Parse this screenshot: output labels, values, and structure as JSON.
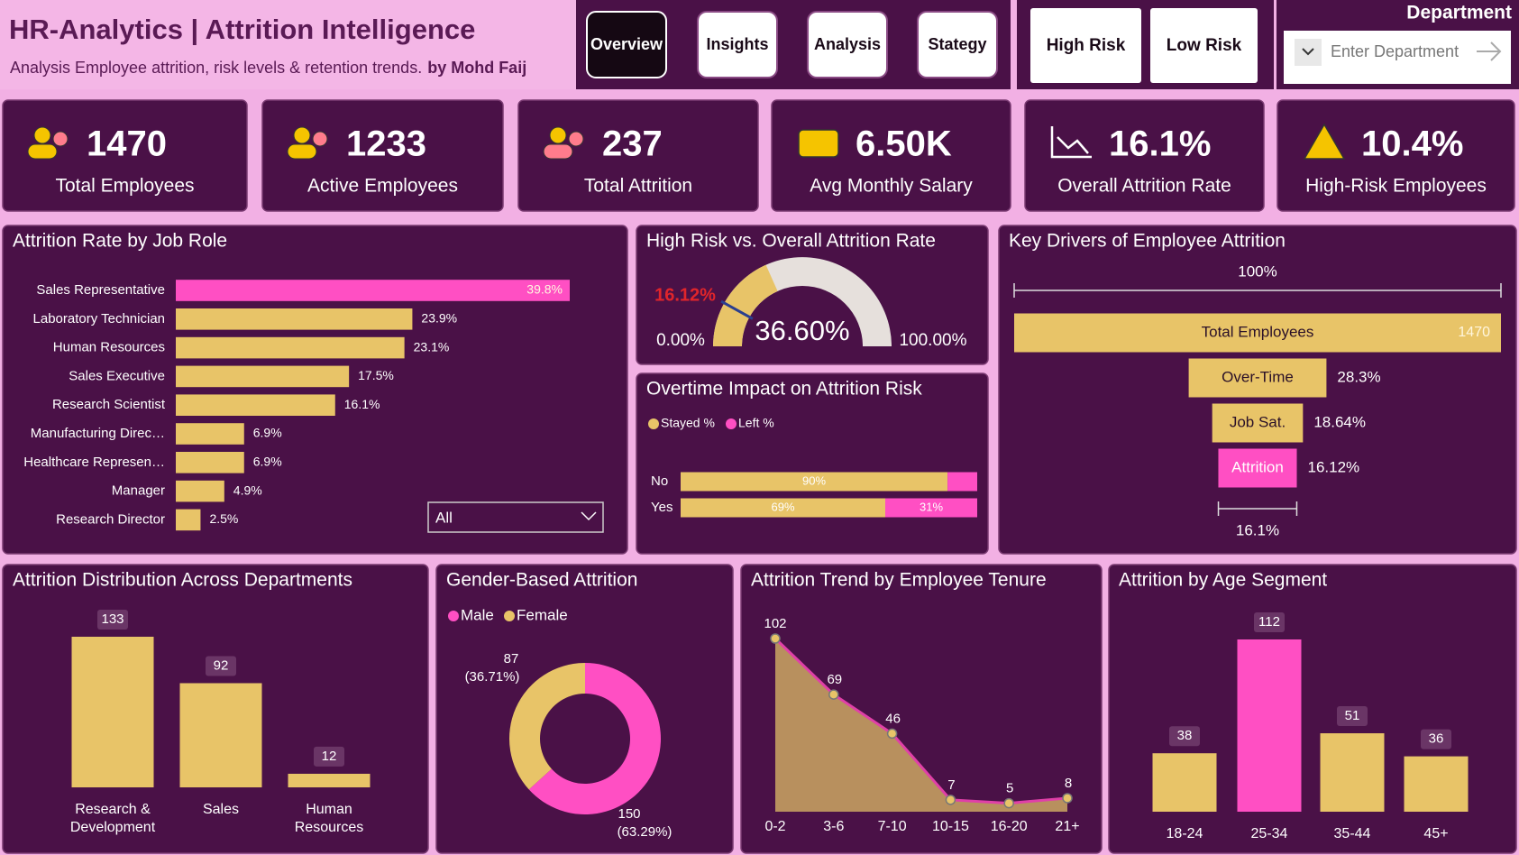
{
  "header": {
    "title": "HR-Analytics | Attrition Intelligence",
    "subtitle": "Analysis Employee attrition, risk levels & retention trends.",
    "author": "by Mohd Faij"
  },
  "nav": [
    "Overview",
    "Insights",
    "Analysis",
    "Stategy"
  ],
  "risk_buttons": [
    "High Risk",
    "Low Risk"
  ],
  "department_filter": {
    "label": "Department",
    "placeholder": "Enter Department"
  },
  "kpis": [
    {
      "value": "1470",
      "label": "Total Employees"
    },
    {
      "value": "1233",
      "label": "Active Employees"
    },
    {
      "value": "237",
      "label": "Total Attrition"
    },
    {
      "value": "6.50K",
      "label": "Avg Monthly Salary"
    },
    {
      "value": "16.1%",
      "label": "Overall Attrition Rate"
    },
    {
      "value": "10.4%",
      "label": "High-Risk Employees"
    }
  ],
  "chart_data": [
    {
      "type": "hbar",
      "title": "Attrition Rate by Job Role",
      "categories": [
        "Sales Representative",
        "Laboratory Technician",
        "Human Resources",
        "Sales Executive",
        "Research Scientist",
        "Manufacturing Direc…",
        "Healthcare Represen…",
        "Manager",
        "Research Director"
      ],
      "values": [
        39.8,
        23.9,
        23.1,
        17.5,
        16.1,
        6.9,
        6.9,
        4.9,
        2.5
      ],
      "value_labels": [
        "39.8%",
        "23.9%",
        "23.1%",
        "17.5%",
        "16.1%",
        "6.9%",
        "6.9%",
        "4.9%",
        "2.5%"
      ],
      "colors": [
        "#ff4fc3",
        "#e8c468",
        "#e8c468",
        "#e8c468",
        "#e8c468",
        "#e8c468",
        "#e8c468",
        "#e8c468",
        "#e8c468"
      ],
      "filter": "All"
    },
    {
      "type": "gauge",
      "title": "High Risk vs. Overall Attrition Rate",
      "value": 36.6,
      "value_label": "36.60%",
      "target": 16.12,
      "target_label": "16.12%",
      "min": {
        "value": 0,
        "label": "0.00%"
      },
      "max": {
        "value": 100,
        "label": "100.00%"
      },
      "color": "#e8c468",
      "track_color": "#e6e0dc",
      "target_color": "#2b3f8f",
      "target_label_color": "#e0252b"
    },
    {
      "type": "stacked_hbar",
      "title": "Overtime Impact on Attrition Risk",
      "categories": [
        "No",
        "Yes"
      ],
      "series": [
        {
          "name": "Stayed %",
          "color": "#e8c468",
          "values": [
            90,
            69
          ],
          "value_labels": [
            "90%",
            "69%"
          ]
        },
        {
          "name": "Left %",
          "color": "#ff4fc3",
          "values": [
            10,
            31
          ],
          "value_labels": [
            null,
            "31%"
          ]
        }
      ]
    },
    {
      "type": "funnel",
      "title": "Key Drivers of Employee Attrition",
      "categories": [
        "Total Employees",
        "Over-Time",
        "Job Sat.",
        "Attrition"
      ],
      "values": [
        100,
        28.3,
        18.64,
        16.12
      ],
      "value_labels": [
        null,
        "28.3%",
        "18.64%",
        "16.12%"
      ],
      "colors": [
        "#e8c468",
        "#e8c468",
        "#e8c468",
        "#ff4fc3"
      ],
      "total": 1470,
      "top_label": {
        "value": 100,
        "label": "100%"
      },
      "bottom_label": {
        "value": 16.1,
        "label": "16.1%"
      }
    },
    {
      "type": "bar",
      "title": "Attrition Distribution Across Departments",
      "categories": [
        "Research & Development",
        "Sales",
        "Human Resources"
      ],
      "values": [
        133,
        92,
        12
      ],
      "colors": [
        "#e8c468",
        "#e8c468",
        "#e8c468"
      ]
    },
    {
      "type": "donut",
      "title": "Gender-Based Attrition",
      "categories": [
        "Male",
        "Female"
      ],
      "values": [
        150,
        87
      ],
      "percents": [
        63.29,
        36.71
      ],
      "percent_labels": [
        "(63.29%)",
        "(36.71%)"
      ],
      "colors": [
        "#ff4fc3",
        "#e8c468"
      ]
    },
    {
      "type": "area",
      "title": "Attrition Trend by Employee Tenure",
      "categories": [
        "0-2",
        "3-6",
        "7-10",
        "10-15",
        "16-20",
        "21+"
      ],
      "values": [
        102,
        69,
        46,
        7,
        5,
        8
      ],
      "color": "#e040a8",
      "fill": "#b8905e"
    },
    {
      "type": "bar",
      "title": "Attrition by Age Segment",
      "categories": [
        "18-24",
        "25-34",
        "35-44",
        "45+"
      ],
      "values": [
        38,
        112,
        51,
        36
      ],
      "colors": [
        "#e8c468",
        "#ff4fc3",
        "#e8c468",
        "#e8c468"
      ]
    }
  ]
}
